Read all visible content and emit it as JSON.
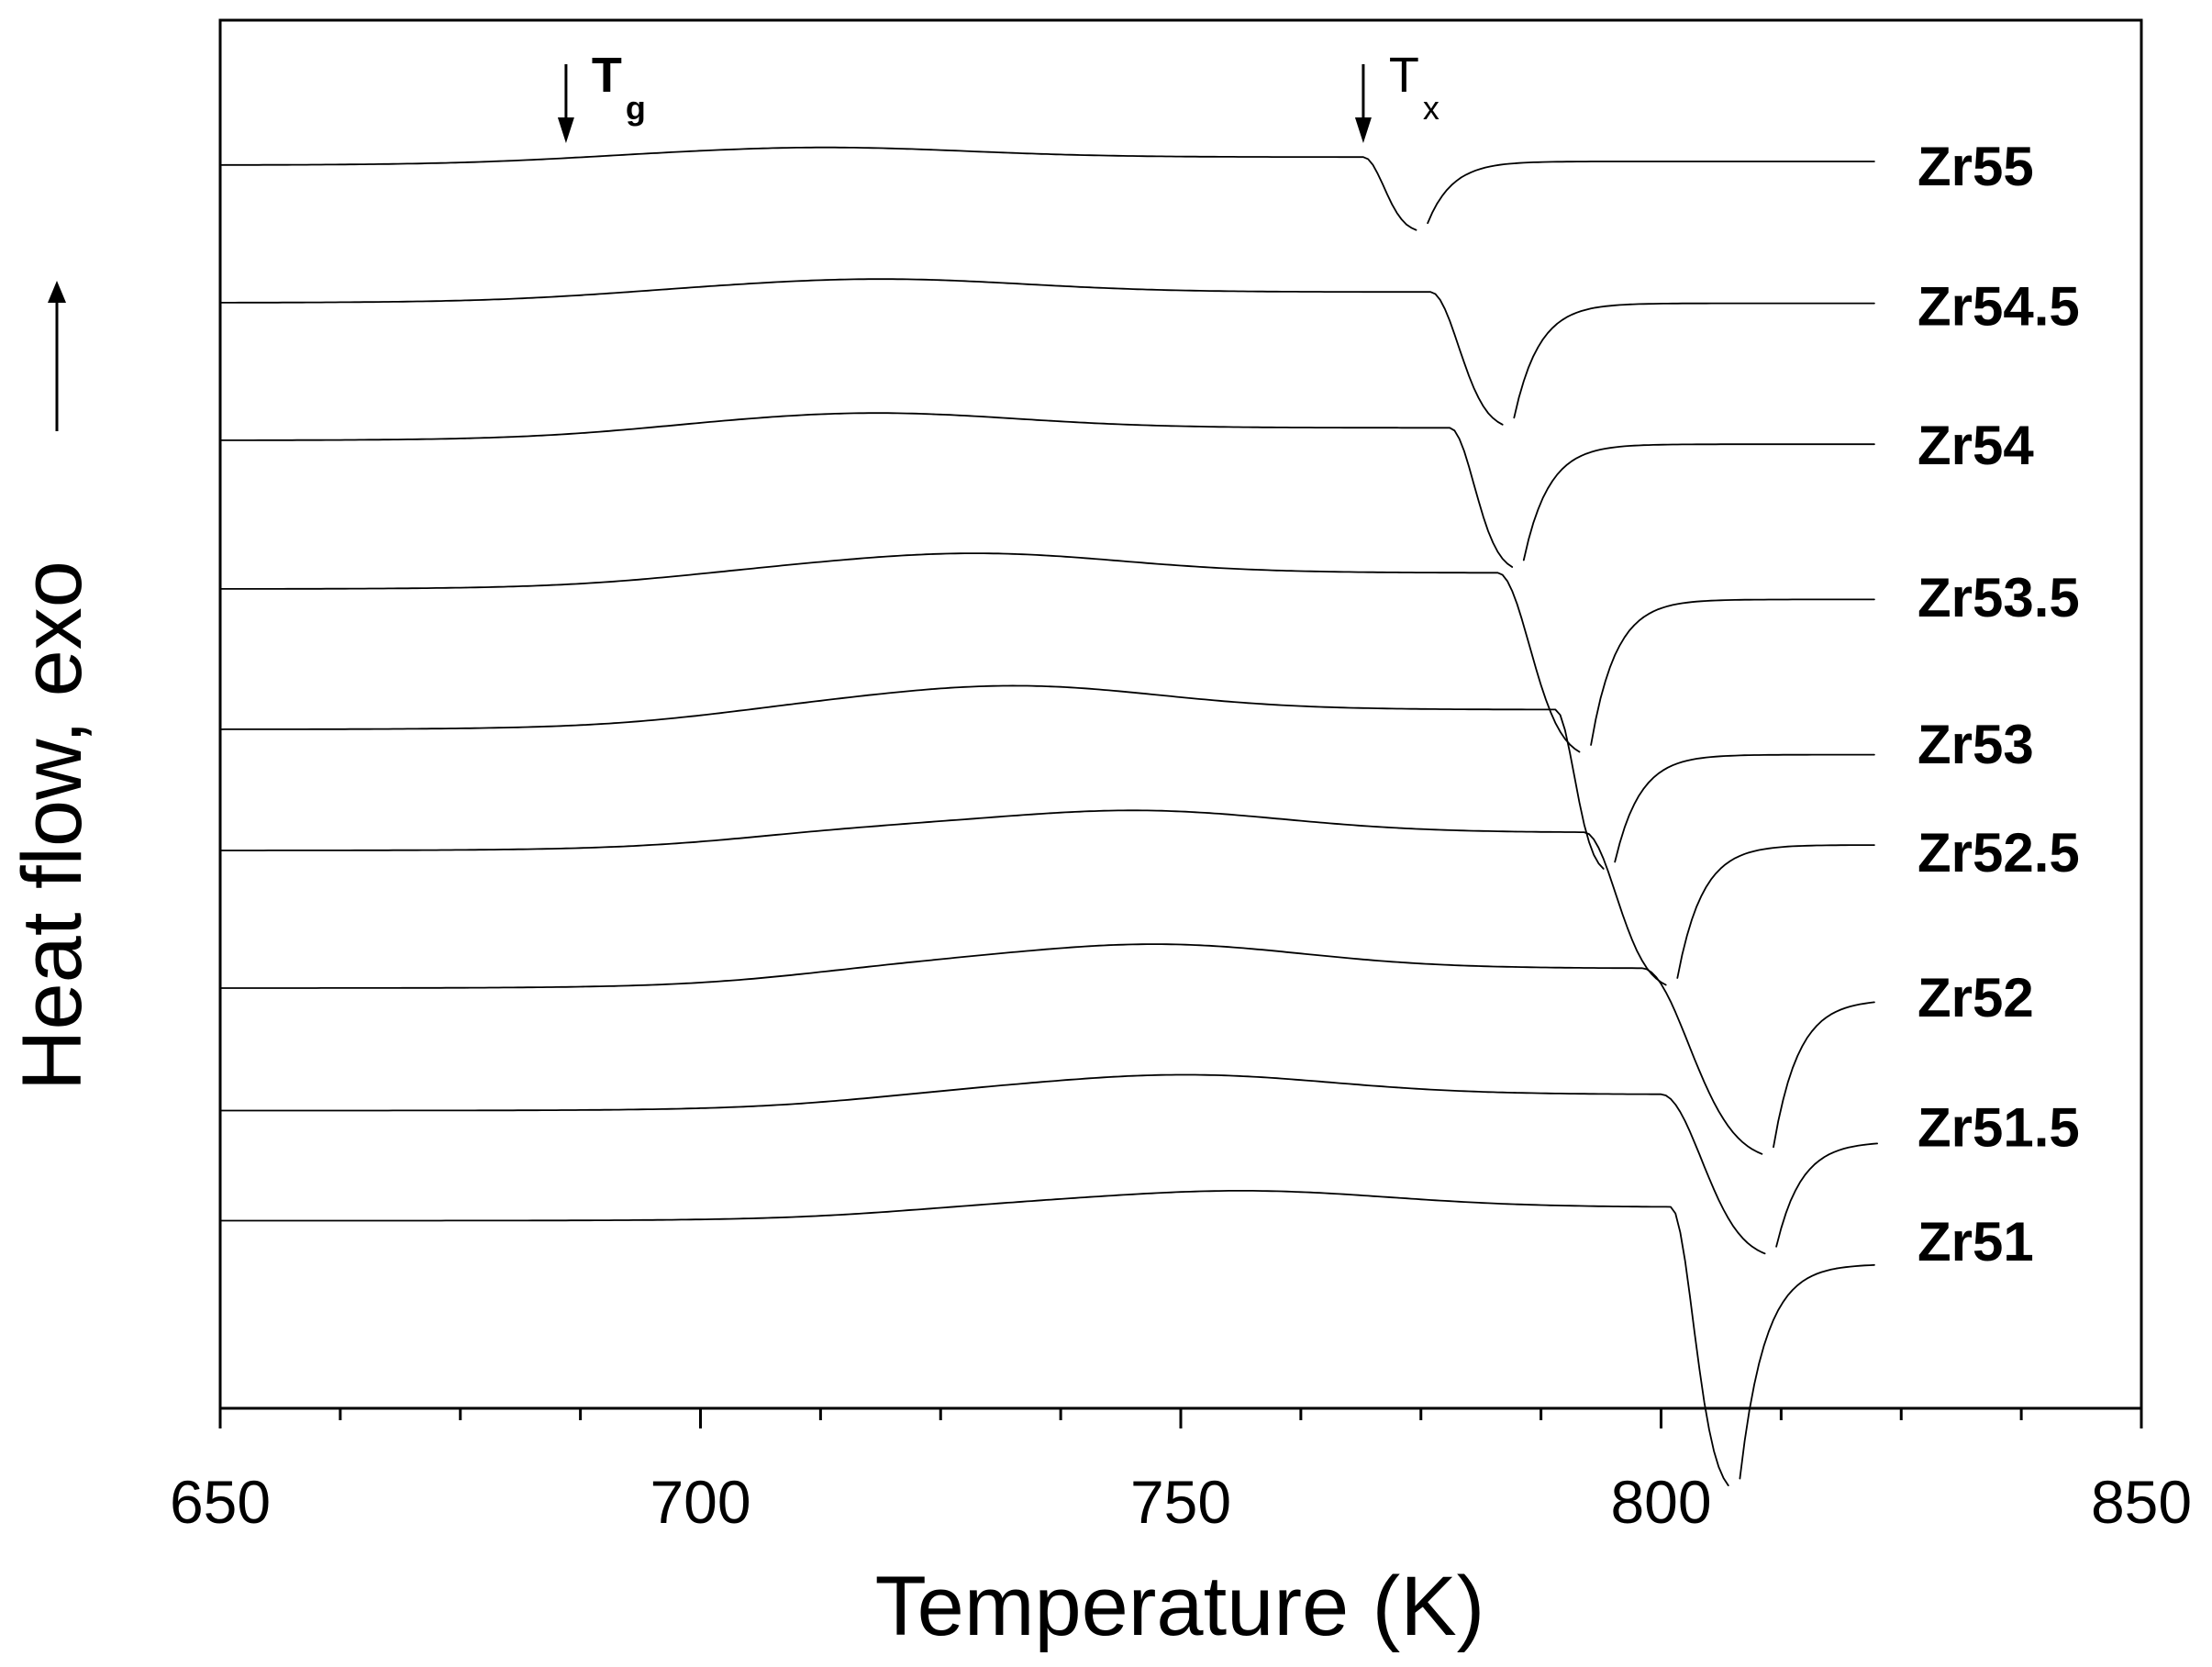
{
  "chart_data": {
    "type": "line",
    "xlabel": "Temperature (K)",
    "ylabel": "Heat flow, exo",
    "xlim": [
      650,
      850
    ],
    "x_ticks": [
      650,
      700,
      750,
      800,
      850
    ],
    "x_minor_step": 12.5,
    "y_ticks_shown": false,
    "grid": false,
    "legend": "none; series labels placed at right end of each curve",
    "y_direction_indicator": "upward arrow = exo",
    "annotations": [
      {
        "text": "T",
        "sub": "g",
        "bold": true,
        "x": 686
      },
      {
        "text": "T",
        "sub": "x",
        "bold": false,
        "x": 769
      }
    ],
    "series": [
      {
        "name": "Zr55",
        "baseline": 0.0,
        "tg": 686,
        "hump_x": 714,
        "hump_height": 0.09,
        "onset": 769,
        "peak_x": 774.5,
        "peak_depth": 0.55,
        "recover": 1.12,
        "tail_level": 0.0
      },
      {
        "name": "Zr54.5",
        "baseline": -1.0,
        "tg": 690,
        "hump_x": 720,
        "hump_height": 0.12,
        "onset": 776,
        "peak_x": 783.5,
        "peak_depth": 1.0,
        "recover": 1.0,
        "tail_level": -0.04
      },
      {
        "name": "Zr54",
        "baseline": -2.0,
        "tg": 693,
        "hump_x": 719,
        "hump_height": 0.14,
        "onset": 778,
        "peak_x": 784.5,
        "peak_depth": 1.05,
        "recover": 1.1,
        "tail_level": -0.07
      },
      {
        "name": "Zr53.5",
        "baseline": -3.08,
        "tg": 698,
        "hump_x": 730,
        "hump_height": 0.18,
        "onset": 783,
        "peak_x": 791.5,
        "peak_depth": 1.35,
        "recover": 1.25,
        "tail_level": -0.13
      },
      {
        "name": "Zr53",
        "baseline": -4.1,
        "tg": 702,
        "hump_x": 734,
        "hump_height": 0.22,
        "onset": 789,
        "peak_x": 794,
        "peak_depth": 1.2,
        "recover": 1.0,
        "tail_level": -0.25
      },
      {
        "name": "Zr52.5",
        "baseline": -4.98,
        "tg": 706,
        "hump_x": 747,
        "hump_height": 0.2,
        "onset": 792,
        "peak_x": 800.5,
        "peak_depth": 1.15,
        "recover": 1.0,
        "tail_level": -0.02
      },
      {
        "name": "Zr52",
        "baseline": -5.98,
        "tg": 712,
        "hump_x": 749,
        "hump_height": 0.22,
        "onset": 798,
        "peak_x": 810.5,
        "peak_depth": 1.4,
        "recover": 1.05,
        "tail_level": -0.15
      },
      {
        "name": "Zr51.5",
        "baseline": -6.87,
        "tg": 718,
        "hump_x": 752,
        "hump_height": 0.18,
        "onset": 800,
        "peak_x": 810.8,
        "peak_depth": 1.2,
        "recover": 0.9,
        "tail_level": -0.28
      },
      {
        "name": "Zr51",
        "baseline": -7.67,
        "tg": 722,
        "hump_x": 758,
        "hump_height": 0.15,
        "onset": 801,
        "peak_x": 807,
        "peak_depth": 2.1,
        "recover": 1.2,
        "tail_level": -0.36
      }
    ]
  }
}
